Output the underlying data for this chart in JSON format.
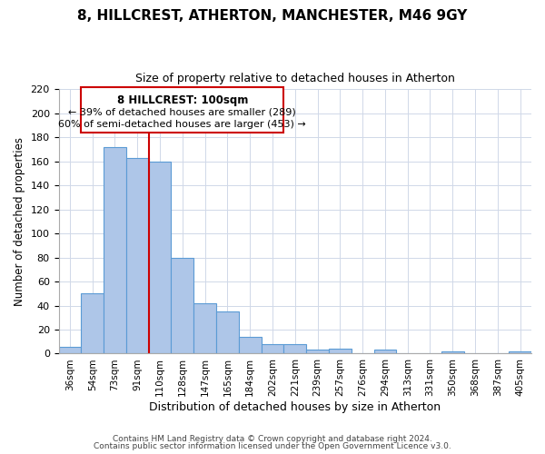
{
  "title": "8, HILLCREST, ATHERTON, MANCHESTER, M46 9GY",
  "subtitle": "Size of property relative to detached houses in Atherton",
  "xlabel": "Distribution of detached houses by size in Atherton",
  "ylabel": "Number of detached properties",
  "bar_labels": [
    "36sqm",
    "54sqm",
    "73sqm",
    "91sqm",
    "110sqm",
    "128sqm",
    "147sqm",
    "165sqm",
    "184sqm",
    "202sqm",
    "221sqm",
    "239sqm",
    "257sqm",
    "276sqm",
    "294sqm",
    "313sqm",
    "331sqm",
    "350sqm",
    "368sqm",
    "387sqm",
    "405sqm"
  ],
  "bar_values": [
    6,
    50,
    172,
    163,
    160,
    80,
    42,
    35,
    14,
    8,
    8,
    3,
    4,
    0,
    3,
    0,
    0,
    2,
    0,
    0,
    2
  ],
  "bar_color": "#aec6e8",
  "bar_edge_color": "#5b9bd5",
  "vline_x_index": 3,
  "vline_color": "#cc0000",
  "ylim": [
    0,
    220
  ],
  "yticks": [
    0,
    20,
    40,
    60,
    80,
    100,
    120,
    140,
    160,
    180,
    200,
    220
  ],
  "annotation_title": "8 HILLCREST: 100sqm",
  "annotation_line1": "← 39% of detached houses are smaller (289)",
  "annotation_line2": "60% of semi-detached houses are larger (453) →",
  "annotation_box_color": "#ffffff",
  "annotation_box_edge": "#cc0000",
  "footer_line1": "Contains HM Land Registry data © Crown copyright and database right 2024.",
  "footer_line2": "Contains public sector information licensed under the Open Government Licence v3.0."
}
